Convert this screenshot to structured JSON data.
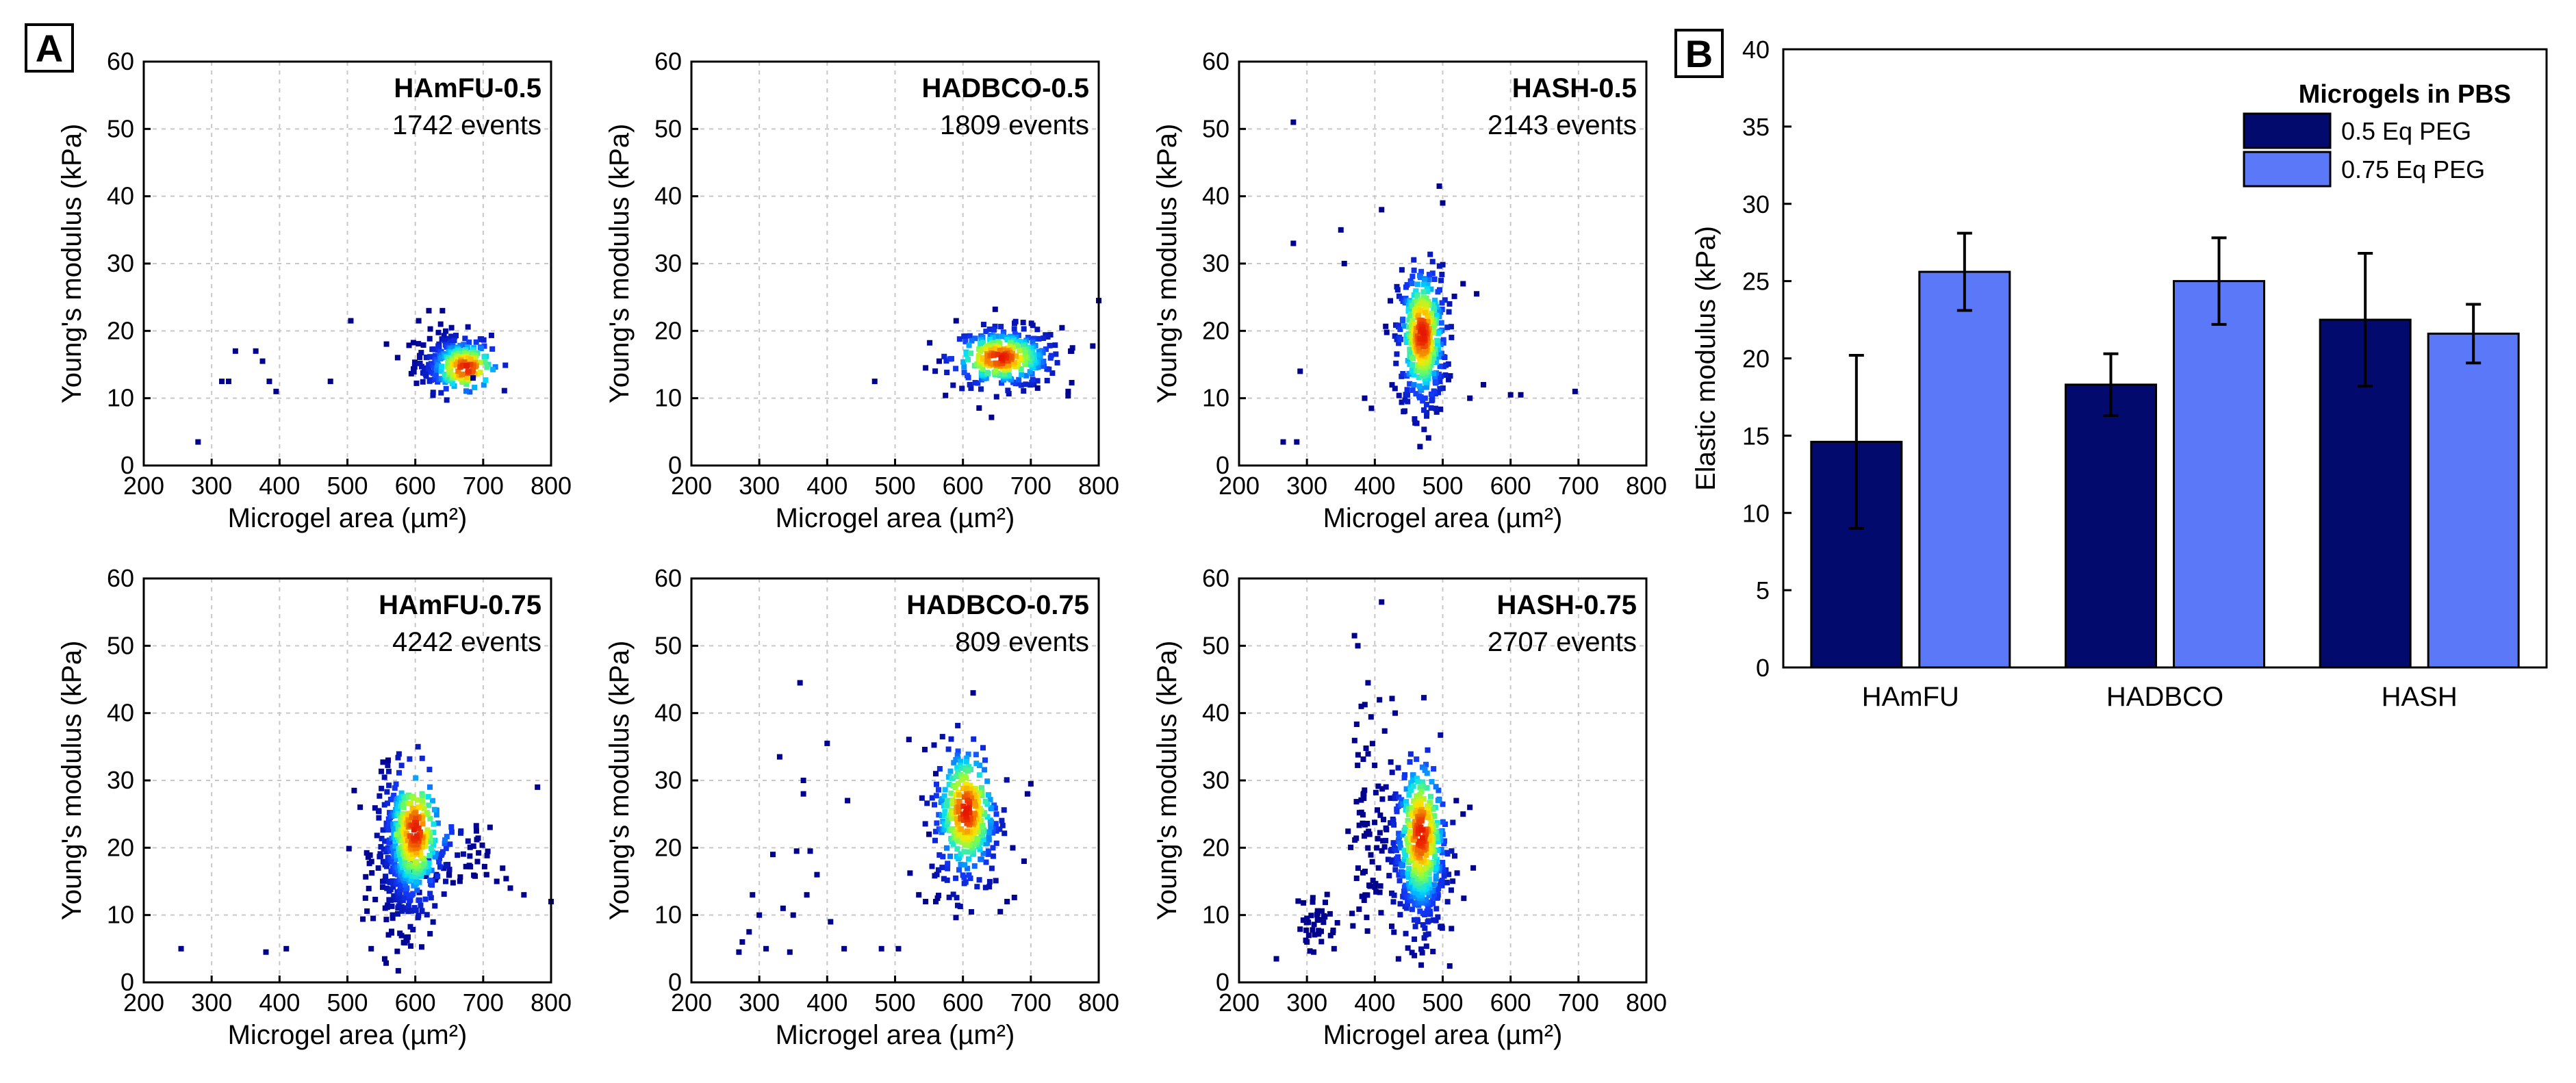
{
  "figure_labels": {
    "a": "A",
    "b": "B"
  },
  "chart_data": [
    {
      "type": "scatter",
      "title": "HAmFU-0.5",
      "events_label": "1742 events",
      "xlabel": "Microgel area (µm²)",
      "ylabel": "Young's modulus (kPa)",
      "xlim": [
        200,
        800
      ],
      "ylim": [
        0,
        60
      ],
      "xticks": [
        "200",
        "300",
        "400",
        "500",
        "600",
        "700",
        "800"
      ],
      "yticks": [
        "0",
        "10",
        "20",
        "30",
        "40",
        "50",
        "60"
      ],
      "grid": true,
      "clusters": [
        {
          "cx": 655,
          "cy": 15.5,
          "sx": 28,
          "sy": 2.2,
          "n": 260,
          "hot_x": 675,
          "hot_y": 14.5
        }
      ],
      "outliers": [
        [
          280,
          3.5
        ],
        [
          315,
          12.5
        ],
        [
          325,
          12.5
        ],
        [
          335,
          17
        ],
        [
          365,
          17
        ],
        [
          375,
          15.5
        ],
        [
          385,
          12.5
        ],
        [
          395,
          11
        ],
        [
          475,
          12.5
        ],
        [
          505,
          21.5
        ],
        [
          605,
          21.5
        ],
        [
          620,
          23
        ],
        [
          640,
          23
        ],
        [
          685,
          13
        ]
      ]
    },
    {
      "type": "scatter",
      "title": "HADBCO-0.5",
      "events_label": "1809 events",
      "xlabel": "Microgel area (µm²)",
      "ylabel": "Young's modulus (kPa)",
      "xlim": [
        200,
        800
      ],
      "ylim": [
        0,
        60
      ],
      "xticks": [
        "200",
        "300",
        "400",
        "500",
        "600",
        "700",
        "800"
      ],
      "yticks": [
        "0",
        "10",
        "20",
        "30",
        "40",
        "50",
        "60"
      ],
      "grid": true,
      "clusters": [
        {
          "cx": 665,
          "cy": 16,
          "sx": 40,
          "sy": 2.2,
          "n": 320,
          "hot_x": 655,
          "hot_y": 16
        }
      ],
      "outliers": [
        [
          470,
          12.5
        ],
        [
          545,
          14.5
        ],
        [
          565,
          15.5
        ],
        [
          755,
          11
        ],
        [
          760,
          17
        ],
        [
          800,
          24.5
        ],
        [
          710,
          11.5
        ],
        [
          590,
          21.5
        ]
      ]
    },
    {
      "type": "scatter",
      "title": "HASH-0.5",
      "events_label": "2143 events",
      "xlabel": "Microgel area (µm²)",
      "ylabel": "Young's modulus (kPa)",
      "xlim": [
        200,
        800
      ],
      "ylim": [
        0,
        60
      ],
      "xticks": [
        "200",
        "300",
        "400",
        "500",
        "600",
        "700",
        "800"
      ],
      "yticks": [
        "0",
        "10",
        "20",
        "30",
        "40",
        "50",
        "60"
      ],
      "grid": true,
      "clusters": [
        {
          "cx": 470,
          "cy": 18.5,
          "sx": 18,
          "sy": 5.5,
          "n": 420,
          "hot_x": 470,
          "hot_y": 19.5
        }
      ],
      "outliers": [
        [
          265,
          3.5
        ],
        [
          285,
          3.5
        ],
        [
          280,
          51
        ],
        [
          280,
          33
        ],
        [
          290,
          14
        ],
        [
          350,
          35
        ],
        [
          355,
          30
        ],
        [
          395,
          8.5
        ],
        [
          410,
          38
        ],
        [
          495,
          41.5
        ],
        [
          500,
          39
        ],
        [
          530,
          27
        ],
        [
          550,
          25.5
        ],
        [
          560,
          12
        ],
        [
          600,
          10.5
        ],
        [
          615,
          10.5
        ],
        [
          695,
          11
        ],
        [
          385,
          10
        ],
        [
          540,
          10
        ]
      ]
    },
    {
      "type": "scatter",
      "title": "HAmFU-0.75",
      "events_label": "4242 events",
      "xlabel": "Microgel area (µm²)",
      "ylabel": "Young's modulus (kPa)",
      "xlim": [
        200,
        800
      ],
      "ylim": [
        0,
        60
      ],
      "xticks": [
        "200",
        "300",
        "400",
        "500",
        "600",
        "700",
        "800"
      ],
      "yticks": [
        "0",
        "10",
        "20",
        "30",
        "40",
        "50",
        "60"
      ],
      "grid": true,
      "clusters": [
        {
          "cx": 585,
          "cy": 19,
          "sx": 22,
          "sy": 5.5,
          "n": 520,
          "hot_x": 600,
          "hot_y": 22.5
        },
        {
          "cx": 650,
          "cy": 18,
          "sx": 30,
          "sy": 2.5,
          "n": 60,
          "hot_x": 600,
          "hot_y": 22.5
        }
      ],
      "outliers": [
        [
          255,
          5
        ],
        [
          380,
          4.5
        ],
        [
          410,
          5
        ],
        [
          535,
          5
        ],
        [
          510,
          28.5
        ],
        [
          705,
          16
        ],
        [
          720,
          15
        ],
        [
          740,
          14
        ],
        [
          760,
          13
        ],
        [
          780,
          29
        ],
        [
          800,
          12
        ],
        [
          690,
          22.5
        ],
        [
          560,
          33
        ]
      ]
    },
    {
      "type": "scatter",
      "title": "HADBCO-0.75",
      "events_label": "809 events",
      "xlabel": "Microgel area (µm²)",
      "ylabel": "Young's modulus (kPa)",
      "xlim": [
        200,
        800
      ],
      "ylim": [
        0,
        60
      ],
      "xticks": [
        "200",
        "300",
        "400",
        "500",
        "600",
        "700",
        "800"
      ],
      "yticks": [
        "0",
        "10",
        "20",
        "30",
        "40",
        "50",
        "60"
      ],
      "grid": true,
      "clusters": [
        {
          "cx": 605,
          "cy": 24.5,
          "sx": 25,
          "sy": 5.5,
          "n": 340,
          "hot_x": 605,
          "hot_y": 25.5
        }
      ],
      "outliers": [
        [
          270,
          4.5
        ],
        [
          275,
          6
        ],
        [
          285,
          7.5
        ],
        [
          290,
          13
        ],
        [
          300,
          10
        ],
        [
          310,
          5
        ],
        [
          320,
          19
        ],
        [
          330,
          33.5
        ],
        [
          335,
          11
        ],
        [
          345,
          4.5
        ],
        [
          350,
          10
        ],
        [
          355,
          19.5
        ],
        [
          360,
          44.5
        ],
        [
          365,
          30
        ],
        [
          365,
          28
        ],
        [
          370,
          13
        ],
        [
          375,
          19.5
        ],
        [
          385,
          16
        ],
        [
          400,
          35.5
        ],
        [
          405,
          9
        ],
        [
          425,
          5
        ],
        [
          430,
          27
        ],
        [
          480,
          5
        ],
        [
          505,
          5
        ],
        [
          535,
          13
        ],
        [
          545,
          12
        ],
        [
          550,
          22
        ],
        [
          560,
          31
        ],
        [
          700,
          29.5
        ],
        [
          695,
          28
        ],
        [
          690,
          18
        ],
        [
          665,
          12
        ],
        [
          655,
          10.5
        ],
        [
          615,
          43
        ],
        [
          560,
          12
        ]
      ]
    },
    {
      "type": "scatter",
      "title": "HASH-0.75",
      "events_label": "2707 events",
      "xlabel": "Microgel area (µm²)",
      "ylabel": "Young's modulus (kPa)",
      "xlim": [
        200,
        800
      ],
      "ylim": [
        0,
        60
      ],
      "xticks": [
        "200",
        "300",
        "400",
        "500",
        "600",
        "700",
        "800"
      ],
      "yticks": [
        "0",
        "10",
        "20",
        "30",
        "40",
        "50",
        "60"
      ],
      "grid": true,
      "clusters": [
        {
          "cx": 465,
          "cy": 19,
          "sx": 20,
          "sy": 6.5,
          "n": 500,
          "hot_x": 468,
          "hot_y": 22
        },
        {
          "cx": 395,
          "cy": 24,
          "sx": 18,
          "sy": 8,
          "n": 80,
          "hot_x": 468,
          "hot_y": 22
        },
        {
          "cx": 315,
          "cy": 9,
          "sx": 14,
          "sy": 2.2,
          "n": 40,
          "hot_x": 468,
          "hot_y": 22
        }
      ],
      "outliers": [
        [
          255,
          3.5
        ],
        [
          370,
          51.5
        ],
        [
          375,
          50
        ],
        [
          410,
          56.5
        ],
        [
          380,
          41
        ],
        [
          390,
          44.5
        ],
        [
          430,
          40
        ],
        [
          520,
          27
        ],
        [
          530,
          25
        ],
        [
          540,
          26
        ],
        [
          545,
          17
        ],
        [
          310,
          4.5
        ],
        [
          340,
          5
        ],
        [
          300,
          6
        ]
      ]
    },
    {
      "type": "bar",
      "title": "",
      "xlabel": "",
      "ylabel": "Elastic modulus (kPa)",
      "ylim": [
        0,
        40
      ],
      "yticks": [
        "0",
        "5",
        "10",
        "15",
        "20",
        "25",
        "30",
        "35",
        "40"
      ],
      "categories": [
        "HAmFU",
        "HADBCO",
        "HASH"
      ],
      "legend_title": "Microgels in PBS",
      "legend_position": "top-right",
      "series": [
        {
          "name": "0.5 Eq PEG",
          "color": "#030a6e",
          "values": [
            14.6,
            18.3,
            22.5
          ],
          "errors": [
            5.6,
            2.0,
            4.3
          ]
        },
        {
          "name": "0.75 Eq PEG",
          "color": "#5a78f7",
          "values": [
            25.6,
            25.0,
            21.6
          ],
          "errors": [
            2.5,
            2.8,
            1.9
          ]
        }
      ]
    }
  ]
}
